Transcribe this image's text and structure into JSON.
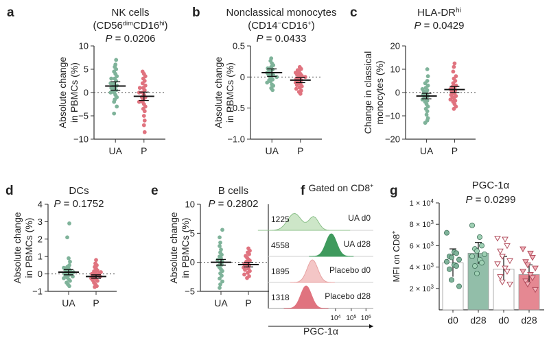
{
  "colors": {
    "ua": "#7fb39a",
    "p": "#e0737f",
    "ua_dark": "#3f9a5d",
    "p_light": "#f4c6c6",
    "ua_light": "#cde6c8",
    "mean": "#111111",
    "axis": "#333333"
  },
  "scatter_panels": [
    {
      "letter": "a",
      "title": [
        "NK cells"
      ],
      "title_rich": [
        [
          "(CD56",
          ""
        ],
        [
          "dim",
          "sup"
        ],
        [
          "CD16",
          ""
        ],
        [
          "hi",
          "sup"
        ],
        [
          ")",
          ""
        ]
      ],
      "p_text": "0.0206",
      "ylabel": [
        "Absolute change",
        "in PBMCs (%)"
      ],
      "ylim": [
        -10,
        10
      ],
      "yticks": [
        -10,
        -5,
        0,
        5,
        10
      ],
      "yticklabels": [
        "−10",
        "−5",
        "0",
        "5",
        "10"
      ],
      "groups": [
        {
          "name": "UA",
          "mean": 1.4,
          "sem": 0.9,
          "values": [
            7,
            6,
            5.5,
            5,
            4.5,
            4,
            3.5,
            3,
            3,
            2.5,
            2,
            2,
            1.5,
            1.5,
            1,
            1,
            0.5,
            0.5,
            0,
            0,
            -0.5,
            -1,
            -1.5,
            -2,
            -3,
            -4.5
          ]
        },
        {
          "name": "P",
          "mean": -0.8,
          "sem": 0.9,
          "values": [
            4.5,
            4,
            3.5,
            3,
            2.5,
            2,
            1.5,
            1,
            1,
            0.5,
            0,
            0,
            -0.5,
            -1,
            -1,
            -1.5,
            -2,
            -2,
            -2.5,
            -3,
            -3.5,
            -4,
            -5,
            -6,
            -7,
            -8.5
          ]
        }
      ]
    },
    {
      "letter": "b",
      "title": [
        "Nonclassical monocytes"
      ],
      "title_rich": [
        [
          "(CD14",
          ""
        ],
        [
          "−",
          "sup"
        ],
        [
          "CD16",
          ""
        ],
        [
          "+",
          "sup"
        ],
        [
          ")",
          ""
        ]
      ],
      "p_text": "0.0433",
      "ylabel": [
        "Absolute change",
        "in PBMCs (%)"
      ],
      "ylim": [
        -1,
        0.5
      ],
      "yticks": [
        -1,
        -0.5,
        0,
        0.5
      ],
      "yticklabels": [
        "−1.0",
        "−0.5",
        "0",
        "0.5"
      ],
      "groups": [
        {
          "name": "UA",
          "mean": 0.07,
          "sem": 0.06,
          "values": [
            0.3,
            0.26,
            0.22,
            0.19,
            0.16,
            0.14,
            0.12,
            0.1,
            0.09,
            0.07,
            0.05,
            0.04,
            0.03,
            0.01,
            0,
            -0.02,
            -0.04,
            -0.05,
            -0.07,
            -0.09,
            -0.12,
            -0.14,
            -0.18,
            -0.21
          ]
        },
        {
          "name": "P",
          "mean": -0.05,
          "sem": 0.04,
          "values": [
            0.16,
            0.13,
            0.11,
            0.09,
            0.07,
            0.05,
            0.04,
            0.02,
            0.01,
            0,
            -0.02,
            -0.03,
            -0.05,
            -0.06,
            -0.08,
            -0.09,
            -0.11,
            -0.13,
            -0.15,
            -0.17,
            -0.19,
            -0.22,
            -0.24,
            -0.27
          ]
        }
      ]
    },
    {
      "letter": "c",
      "title": [
        "HLA-DR"
      ],
      "title_sup": "hi",
      "title_rich": [],
      "p_text": "0.0429",
      "ylabel": [
        "Change in classical",
        "monocytes (%)"
      ],
      "ylim": [
        -20,
        20
      ],
      "yticks": [
        -20,
        -10,
        0,
        10,
        20
      ],
      "yticklabels": [
        "−20",
        "−10",
        "0",
        "10",
        "20"
      ],
      "groups": [
        {
          "name": "UA",
          "mean": -1.5,
          "sem": 1.2,
          "values": [
            10,
            7,
            5,
            4,
            3,
            2,
            1.5,
            1,
            0.5,
            0,
            -0.5,
            -1,
            -1.5,
            -2,
            -2.5,
            -3,
            -3.5,
            -4,
            -5,
            -6,
            -7,
            -8,
            -9.5,
            -11,
            -12,
            -13
          ]
        },
        {
          "name": "P",
          "mean": 1.3,
          "sem": 1.3,
          "values": [
            12.5,
            11,
            9,
            7,
            6,
            5,
            4,
            3,
            2.5,
            2,
            1.5,
            1,
            0.5,
            0,
            -0.5,
            -1,
            -1.5,
            -2,
            -2.5,
            -3,
            -3.5,
            -4,
            -5,
            -6,
            -7
          ]
        }
      ]
    },
    {
      "letter": "d",
      "title": [
        "DCs"
      ],
      "title_rich": [],
      "p_text": "0.1752",
      "ylabel": [
        "Absolute change",
        "in PBMCs (%)"
      ],
      "ylim": [
        -1,
        4
      ],
      "yticks": [
        -1,
        0,
        1,
        2,
        3,
        4
      ],
      "yticklabels": [
        "−1",
        "0",
        "1",
        "2",
        "3",
        "4"
      ],
      "groups": [
        {
          "name": "UA",
          "mean": 0.1,
          "sem": 0.15,
          "values": [
            2.9,
            2.1,
            0.9,
            0.7,
            0.5,
            0.4,
            0.35,
            0.3,
            0.25,
            0.2,
            0.15,
            0.1,
            0.05,
            0,
            0,
            -0.05,
            -0.1,
            -0.15,
            -0.2,
            -0.25,
            -0.3,
            -0.4,
            -0.5,
            -0.6,
            -0.7
          ]
        },
        {
          "name": "P",
          "mean": -0.15,
          "sem": 0.1,
          "values": [
            0.8,
            0.6,
            0.5,
            0.4,
            0.3,
            0.2,
            0.15,
            0.1,
            0.05,
            0,
            0,
            -0.05,
            -0.1,
            -0.15,
            -0.2,
            -0.25,
            -0.3,
            -0.35,
            -0.4,
            -0.5,
            -0.6,
            -0.7,
            -0.75
          ]
        }
      ]
    },
    {
      "letter": "e",
      "title": [
        "B cells"
      ],
      "title_rich": [],
      "p_text": "0.2802",
      "ylabel": [
        "Absolute change",
        "in PBMCs (%)"
      ],
      "ylim": [
        -5,
        10
      ],
      "yticks": [
        -5,
        0,
        5,
        10
      ],
      "yticklabels": [
        "−5",
        "0",
        "5",
        "10"
      ],
      "groups": [
        {
          "name": "UA",
          "mean": 0,
          "sem": 0.5,
          "values": [
            5.6,
            4.3,
            3.4,
            2.8,
            2.2,
            1.7,
            1.3,
            1,
            0.7,
            0.4,
            0.1,
            -0.1,
            -0.4,
            -0.6,
            -0.9,
            -1.2,
            -1.5,
            -1.9,
            -2.3,
            -2.8,
            -3.3,
            -3.8,
            -4.4
          ]
        },
        {
          "name": "P",
          "mean": -0.4,
          "sem": 0.4,
          "values": [
            2.4,
            2,
            1.7,
            1.4,
            1.1,
            0.8,
            0.5,
            0.3,
            0.1,
            -0.1,
            -0.3,
            -0.5,
            -0.7,
            -0.9,
            -1.1,
            -1.3,
            -1.5,
            -1.8,
            -2.1,
            -2.4,
            -2.7
          ]
        }
      ]
    }
  ],
  "flow_panel": {
    "letter": "f",
    "title": "Gated on CD8",
    "title_sup": "+",
    "xlabel": "PGC-1α",
    "xticks": [
      [
        "10",
        "4"
      ],
      [
        "10",
        "5"
      ],
      [
        "10",
        "6"
      ]
    ],
    "rows": [
      {
        "mfi": "1225",
        "label": "UA d0",
        "kind": "ua_light",
        "peak": 0.34
      },
      {
        "mfi": "4558",
        "label": "UA d28",
        "kind": "ua_dark",
        "peak": 0.6
      },
      {
        "mfi": "1895",
        "label": "Placebo d0",
        "kind": "p_light",
        "peak": 0.42
      },
      {
        "mfi": "1318",
        "label": "Placebo d28",
        "kind": "p",
        "peak": 0.36
      }
    ]
  },
  "bar_panel": {
    "letter": "g",
    "title": "PGC-1α",
    "p_text": "0.0299",
    "ylabel": "MFI on CD8",
    "ylim": [
      0,
      10000
    ],
    "yticks": [
      {
        "v": 2000,
        "m": "2"
      },
      {
        "v": 4000,
        "m": "4"
      },
      {
        "v": 6000,
        "m": "6"
      },
      {
        "v": 8000,
        "m": "8"
      },
      {
        "v": 10000,
        "m": "1"
      }
    ],
    "categories": [
      "d0",
      "d28",
      "d0",
      "d28"
    ],
    "bars": [
      {
        "mean": 4400,
        "sd": 1300,
        "marker": "circle",
        "fill": "#ffffff",
        "pts": [
          7200,
          5400,
          5300,
          5000,
          4900,
          4700,
          4500,
          4200,
          4100,
          3800,
          2800,
          2200
        ]
      },
      {
        "mean": 5300,
        "sd": 1000,
        "marker": "circle",
        "fill": "#7fb39a",
        "pts": [
          7900,
          6800,
          6000,
          5700,
          5500,
          5200,
          5000,
          4700,
          4400,
          4100,
          3400
        ]
      },
      {
        "mean": 3800,
        "sd": 1200,
        "marker": "triangle",
        "fill": "#ffffff",
        "pts": [
          6700,
          6600,
          6000,
          5500,
          5000,
          4600,
          4300,
          3900,
          3600,
          3100,
          2600,
          2400
        ]
      },
      {
        "mean": 3300,
        "sd": 900,
        "marker": "triangle",
        "fill": "#e0737f",
        "pts": [
          5700,
          5300,
          4900,
          4500,
          4200,
          3900,
          3600,
          3300,
          3000,
          2700,
          2400,
          1900
        ]
      }
    ]
  }
}
